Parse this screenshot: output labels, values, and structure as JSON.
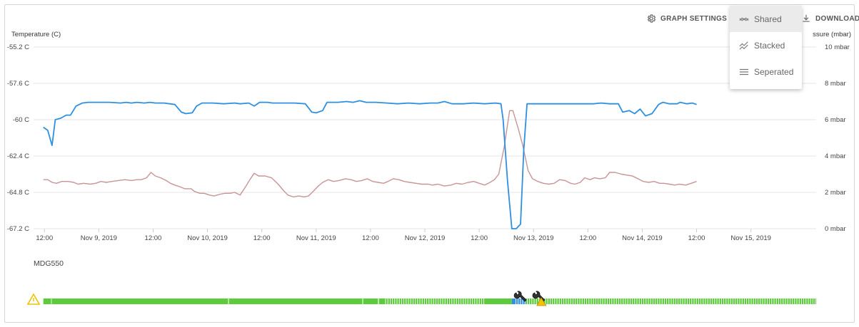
{
  "toolbar": {
    "graph_settings_label": "GRAPH SETTINGS",
    "download_label": "DOWNLOAD"
  },
  "menu": {
    "items": [
      {
        "label": "Shared",
        "icon": "shared-graph-icon",
        "selected": true
      },
      {
        "label": "Stacked",
        "icon": "stacked-graph-icon",
        "selected": false
      },
      {
        "label": "Seperated",
        "icon": "separated-lines-icon",
        "selected": false
      }
    ]
  },
  "device": {
    "name": "MDG550"
  },
  "chart_data": {
    "type": "line",
    "left_axis": {
      "title": "Temperature (C)",
      "ylim": [
        -67.2,
        -55.2
      ],
      "ticks": [
        -55.2,
        -57.6,
        -60,
        -62.4,
        -64.8,
        -67.2
      ],
      "tick_labels": [
        "-55.2 C",
        "-57.6 C",
        "-60 C",
        "-62.4 C",
        "-64.8 C",
        "-67.2 C"
      ]
    },
    "right_axis": {
      "title": "ssure (mbar)",
      "ylim": [
        0,
        10
      ],
      "ticks": [
        10,
        8,
        6,
        4,
        2,
        0
      ],
      "tick_labels": [
        "10 mbar",
        "8 mbar",
        "6 mbar",
        "4 mbar",
        "2 mbar",
        "0 mbar"
      ]
    },
    "x_axis": {
      "range_days": [
        8.4,
        15.6
      ],
      "tick_days": [
        8.5,
        9,
        9.5,
        10,
        10.5,
        11,
        11.5,
        12,
        12.5,
        13,
        13.5,
        14,
        14.5,
        15
      ],
      "tick_labels": [
        "12:00",
        "Nov 9, 2019",
        "12:00",
        "Nov 10, 2019",
        "12:00",
        "Nov 11, 2019",
        "12:00",
        "Nov 12, 2019",
        "12:00",
        "Nov 13, 2019",
        "12:00",
        "Nov 14, 2019",
        "12:00",
        "Nov 15, 2019"
      ]
    },
    "grid": true,
    "series": [
      {
        "axis": "left",
        "color": "#2f8fe0",
        "points": [
          [
            8.49,
            -60.5
          ],
          [
            8.53,
            -60.7
          ],
          [
            8.57,
            -61.7
          ],
          [
            8.6,
            -60
          ],
          [
            8.65,
            -59.9
          ],
          [
            8.7,
            -59.7
          ],
          [
            8.74,
            -59.7
          ],
          [
            8.79,
            -59.1
          ],
          [
            8.85,
            -58.9
          ],
          [
            8.9,
            -58.85
          ],
          [
            8.95,
            -58.85
          ],
          [
            9.1,
            -58.85
          ],
          [
            9.2,
            -58.9
          ],
          [
            9.25,
            -58.85
          ],
          [
            9.3,
            -58.9
          ],
          [
            9.35,
            -58.85
          ],
          [
            9.42,
            -58.9
          ],
          [
            9.47,
            -58.85
          ],
          [
            9.52,
            -58.9
          ],
          [
            9.6,
            -58.9
          ],
          [
            9.7,
            -59
          ],
          [
            9.76,
            -59.5
          ],
          [
            9.8,
            -59.6
          ],
          [
            9.86,
            -59.55
          ],
          [
            9.9,
            -59.1
          ],
          [
            9.95,
            -58.9
          ],
          [
            10.05,
            -58.9
          ],
          [
            10.15,
            -58.95
          ],
          [
            10.25,
            -58.9
          ],
          [
            10.3,
            -58.95
          ],
          [
            10.38,
            -58.9
          ],
          [
            10.43,
            -59.1
          ],
          [
            10.48,
            -58.85
          ],
          [
            10.55,
            -58.85
          ],
          [
            10.6,
            -58.9
          ],
          [
            10.7,
            -58.9
          ],
          [
            10.8,
            -58.9
          ],
          [
            10.9,
            -58.95
          ],
          [
            10.96,
            -59.5
          ],
          [
            11,
            -59.55
          ],
          [
            11.06,
            -59.4
          ],
          [
            11.1,
            -58.85
          ],
          [
            11.2,
            -58.85
          ],
          [
            11.28,
            -58.8
          ],
          [
            11.34,
            -58.85
          ],
          [
            11.4,
            -58.75
          ],
          [
            11.46,
            -58.85
          ],
          [
            11.55,
            -58.85
          ],
          [
            11.65,
            -58.9
          ],
          [
            11.75,
            -58.95
          ],
          [
            11.85,
            -58.9
          ],
          [
            11.95,
            -58.95
          ],
          [
            12.05,
            -58.9
          ],
          [
            12.12,
            -58.9
          ],
          [
            12.18,
            -58.8
          ],
          [
            12.25,
            -58.95
          ],
          [
            12.35,
            -58.95
          ],
          [
            12.45,
            -58.9
          ],
          [
            12.55,
            -58.95
          ],
          [
            12.65,
            -58.9
          ],
          [
            12.7,
            -58.95
          ],
          [
            12.72,
            -60
          ],
          [
            12.76,
            -64
          ],
          [
            12.8,
            -67.2
          ],
          [
            12.84,
            -67.2
          ],
          [
            12.88,
            -66.9
          ],
          [
            12.91,
            -62
          ],
          [
            12.94,
            -58.95
          ],
          [
            13.05,
            -58.95
          ],
          [
            13.15,
            -58.95
          ],
          [
            13.25,
            -58.95
          ],
          [
            13.35,
            -58.95
          ],
          [
            13.45,
            -58.95
          ],
          [
            13.55,
            -58.95
          ],
          [
            13.62,
            -58.9
          ],
          [
            13.7,
            -58.95
          ],
          [
            13.78,
            -58.95
          ],
          [
            13.82,
            -59.5
          ],
          [
            13.88,
            -59.4
          ],
          [
            13.93,
            -59.6
          ],
          [
            13.98,
            -59.3
          ],
          [
            14.03,
            -59.75
          ],
          [
            14.09,
            -59.6
          ],
          [
            14.15,
            -59
          ],
          [
            14.19,
            -58.85
          ],
          [
            14.25,
            -58.95
          ],
          [
            14.32,
            -58.95
          ],
          [
            14.35,
            -58.85
          ],
          [
            14.41,
            -58.95
          ],
          [
            14.46,
            -58.9
          ],
          [
            14.5,
            -59
          ]
        ]
      },
      {
        "axis": "right",
        "color": "#c89496",
        "points": [
          [
            8.49,
            2.7
          ],
          [
            8.53,
            2.7
          ],
          [
            8.57,
            2.55
          ],
          [
            8.61,
            2.5
          ],
          [
            8.66,
            2.6
          ],
          [
            8.72,
            2.6
          ],
          [
            8.77,
            2.55
          ],
          [
            8.81,
            2.45
          ],
          [
            8.86,
            2.5
          ],
          [
            8.92,
            2.45
          ],
          [
            8.97,
            2.5
          ],
          [
            9.02,
            2.6
          ],
          [
            9.07,
            2.55
          ],
          [
            9.12,
            2.6
          ],
          [
            9.18,
            2.65
          ],
          [
            9.24,
            2.7
          ],
          [
            9.3,
            2.65
          ],
          [
            9.35,
            2.7
          ],
          [
            9.39,
            2.7
          ],
          [
            9.44,
            2.8
          ],
          [
            9.48,
            3.1
          ],
          [
            9.52,
            2.9
          ],
          [
            9.57,
            2.8
          ],
          [
            9.62,
            2.65
          ],
          [
            9.66,
            2.5
          ],
          [
            9.7,
            2.4
          ],
          [
            9.75,
            2.3
          ],
          [
            9.79,
            2.2
          ],
          [
            9.85,
            2.2
          ],
          [
            9.88,
            2.05
          ],
          [
            9.93,
            1.95
          ],
          [
            9.97,
            1.95
          ],
          [
            10.02,
            1.85
          ],
          [
            10.06,
            1.8
          ],
          [
            10.12,
            1.9
          ],
          [
            10.16,
            1.95
          ],
          [
            10.21,
            1.95
          ],
          [
            10.25,
            2
          ],
          [
            10.3,
            1.85
          ],
          [
            10.35,
            2.3
          ],
          [
            10.39,
            2.7
          ],
          [
            10.43,
            3.05
          ],
          [
            10.47,
            2.9
          ],
          [
            10.53,
            2.9
          ],
          [
            10.59,
            2.8
          ],
          [
            10.65,
            2.45
          ],
          [
            10.7,
            2.1
          ],
          [
            10.74,
            1.85
          ],
          [
            10.79,
            1.75
          ],
          [
            10.84,
            1.8
          ],
          [
            10.89,
            1.75
          ],
          [
            10.93,
            1.8
          ],
          [
            10.98,
            2.1
          ],
          [
            11.02,
            2.35
          ],
          [
            11.06,
            2.55
          ],
          [
            11.11,
            2.7
          ],
          [
            11.16,
            2.6
          ],
          [
            11.21,
            2.65
          ],
          [
            11.27,
            2.75
          ],
          [
            11.32,
            2.7
          ],
          [
            11.37,
            2.6
          ],
          [
            11.42,
            2.65
          ],
          [
            11.47,
            2.75
          ],
          [
            11.52,
            2.6
          ],
          [
            11.57,
            2.55
          ],
          [
            11.62,
            2.5
          ],
          [
            11.66,
            2.6
          ],
          [
            11.71,
            2.75
          ],
          [
            11.76,
            2.7
          ],
          [
            11.81,
            2.6
          ],
          [
            11.86,
            2.55
          ],
          [
            11.92,
            2.5
          ],
          [
            11.97,
            2.45
          ],
          [
            12.03,
            2.45
          ],
          [
            12.07,
            2.4
          ],
          [
            12.12,
            2.45
          ],
          [
            12.18,
            2.35
          ],
          [
            12.24,
            2.4
          ],
          [
            12.29,
            2.5
          ],
          [
            12.34,
            2.45
          ],
          [
            12.4,
            2.55
          ],
          [
            12.45,
            2.6
          ],
          [
            12.5,
            2.5
          ],
          [
            12.55,
            2.4
          ],
          [
            12.6,
            2.55
          ],
          [
            12.64,
            2.7
          ],
          [
            12.68,
            3
          ],
          [
            12.73,
            4.5
          ],
          [
            12.78,
            6.5
          ],
          [
            12.81,
            6.5
          ],
          [
            12.86,
            5.5
          ],
          [
            12.9,
            4.6
          ],
          [
            12.95,
            3.2
          ],
          [
            12.99,
            2.75
          ],
          [
            13.04,
            2.6
          ],
          [
            13.09,
            2.5
          ],
          [
            13.14,
            2.45
          ],
          [
            13.19,
            2.5
          ],
          [
            13.24,
            2.7
          ],
          [
            13.29,
            2.65
          ],
          [
            13.34,
            2.5
          ],
          [
            13.38,
            2.45
          ],
          [
            13.43,
            2.55
          ],
          [
            13.47,
            2.8
          ],
          [
            13.52,
            2.7
          ],
          [
            13.56,
            2.8
          ],
          [
            13.61,
            2.75
          ],
          [
            13.66,
            2.8
          ],
          [
            13.7,
            3.1
          ],
          [
            13.75,
            3.1
          ],
          [
            13.81,
            3
          ],
          [
            13.86,
            2.95
          ],
          [
            13.91,
            2.9
          ],
          [
            13.96,
            2.75
          ],
          [
            14.01,
            2.6
          ],
          [
            14.06,
            2.55
          ],
          [
            14.11,
            2.6
          ],
          [
            14.16,
            2.5
          ],
          [
            14.2,
            2.5
          ],
          [
            14.25,
            2.45
          ],
          [
            14.3,
            2.4
          ],
          [
            14.34,
            2.45
          ],
          [
            14.4,
            2.4
          ],
          [
            14.45,
            2.5
          ],
          [
            14.5,
            2.6
          ]
        ]
      }
    ]
  },
  "status_bar": {
    "colors": {
      "ok": "#5ccc3c",
      "maintenance": "#2f8fe0",
      "warning": "#f2c200"
    },
    "segments": [
      {
        "start_day": 8.49,
        "end_day": 12.8,
        "status": "ok"
      },
      {
        "start_day": 12.8,
        "end_day": 12.93,
        "status": "maintenance"
      },
      {
        "start_day": 12.93,
        "end_day": 15.6,
        "status": "ok"
      }
    ],
    "events": [
      {
        "day": 8.4,
        "icon": "warning-triangle-icon"
      },
      {
        "day": 12.88,
        "icon": "wrench-icon"
      },
      {
        "day": 13.05,
        "icon": "wrench-warning-icon"
      }
    ]
  }
}
